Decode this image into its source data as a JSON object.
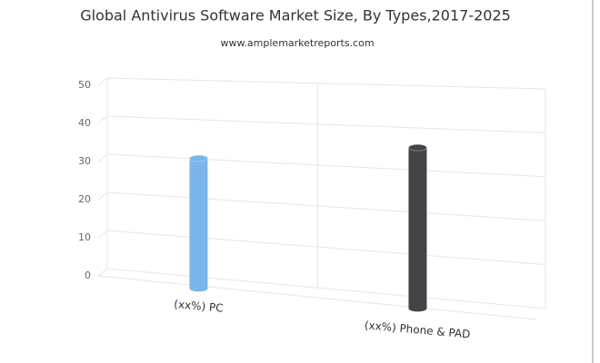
{
  "chart_data": {
    "type": "bar3d",
    "title": "Global Antivirus Software Market Size, By Types,2017-2025",
    "subtitle": "www.amplemarketreports.com",
    "categories": [
      "(xx%) PC",
      "(xx%) Phone & PAD"
    ],
    "values": [
      33,
      38
    ],
    "colors": [
      "#7cb5ec",
      "#434348"
    ],
    "ylim": [
      0,
      50
    ],
    "yticks": [
      0,
      10,
      20,
      30,
      40,
      50
    ],
    "grid": true
  }
}
